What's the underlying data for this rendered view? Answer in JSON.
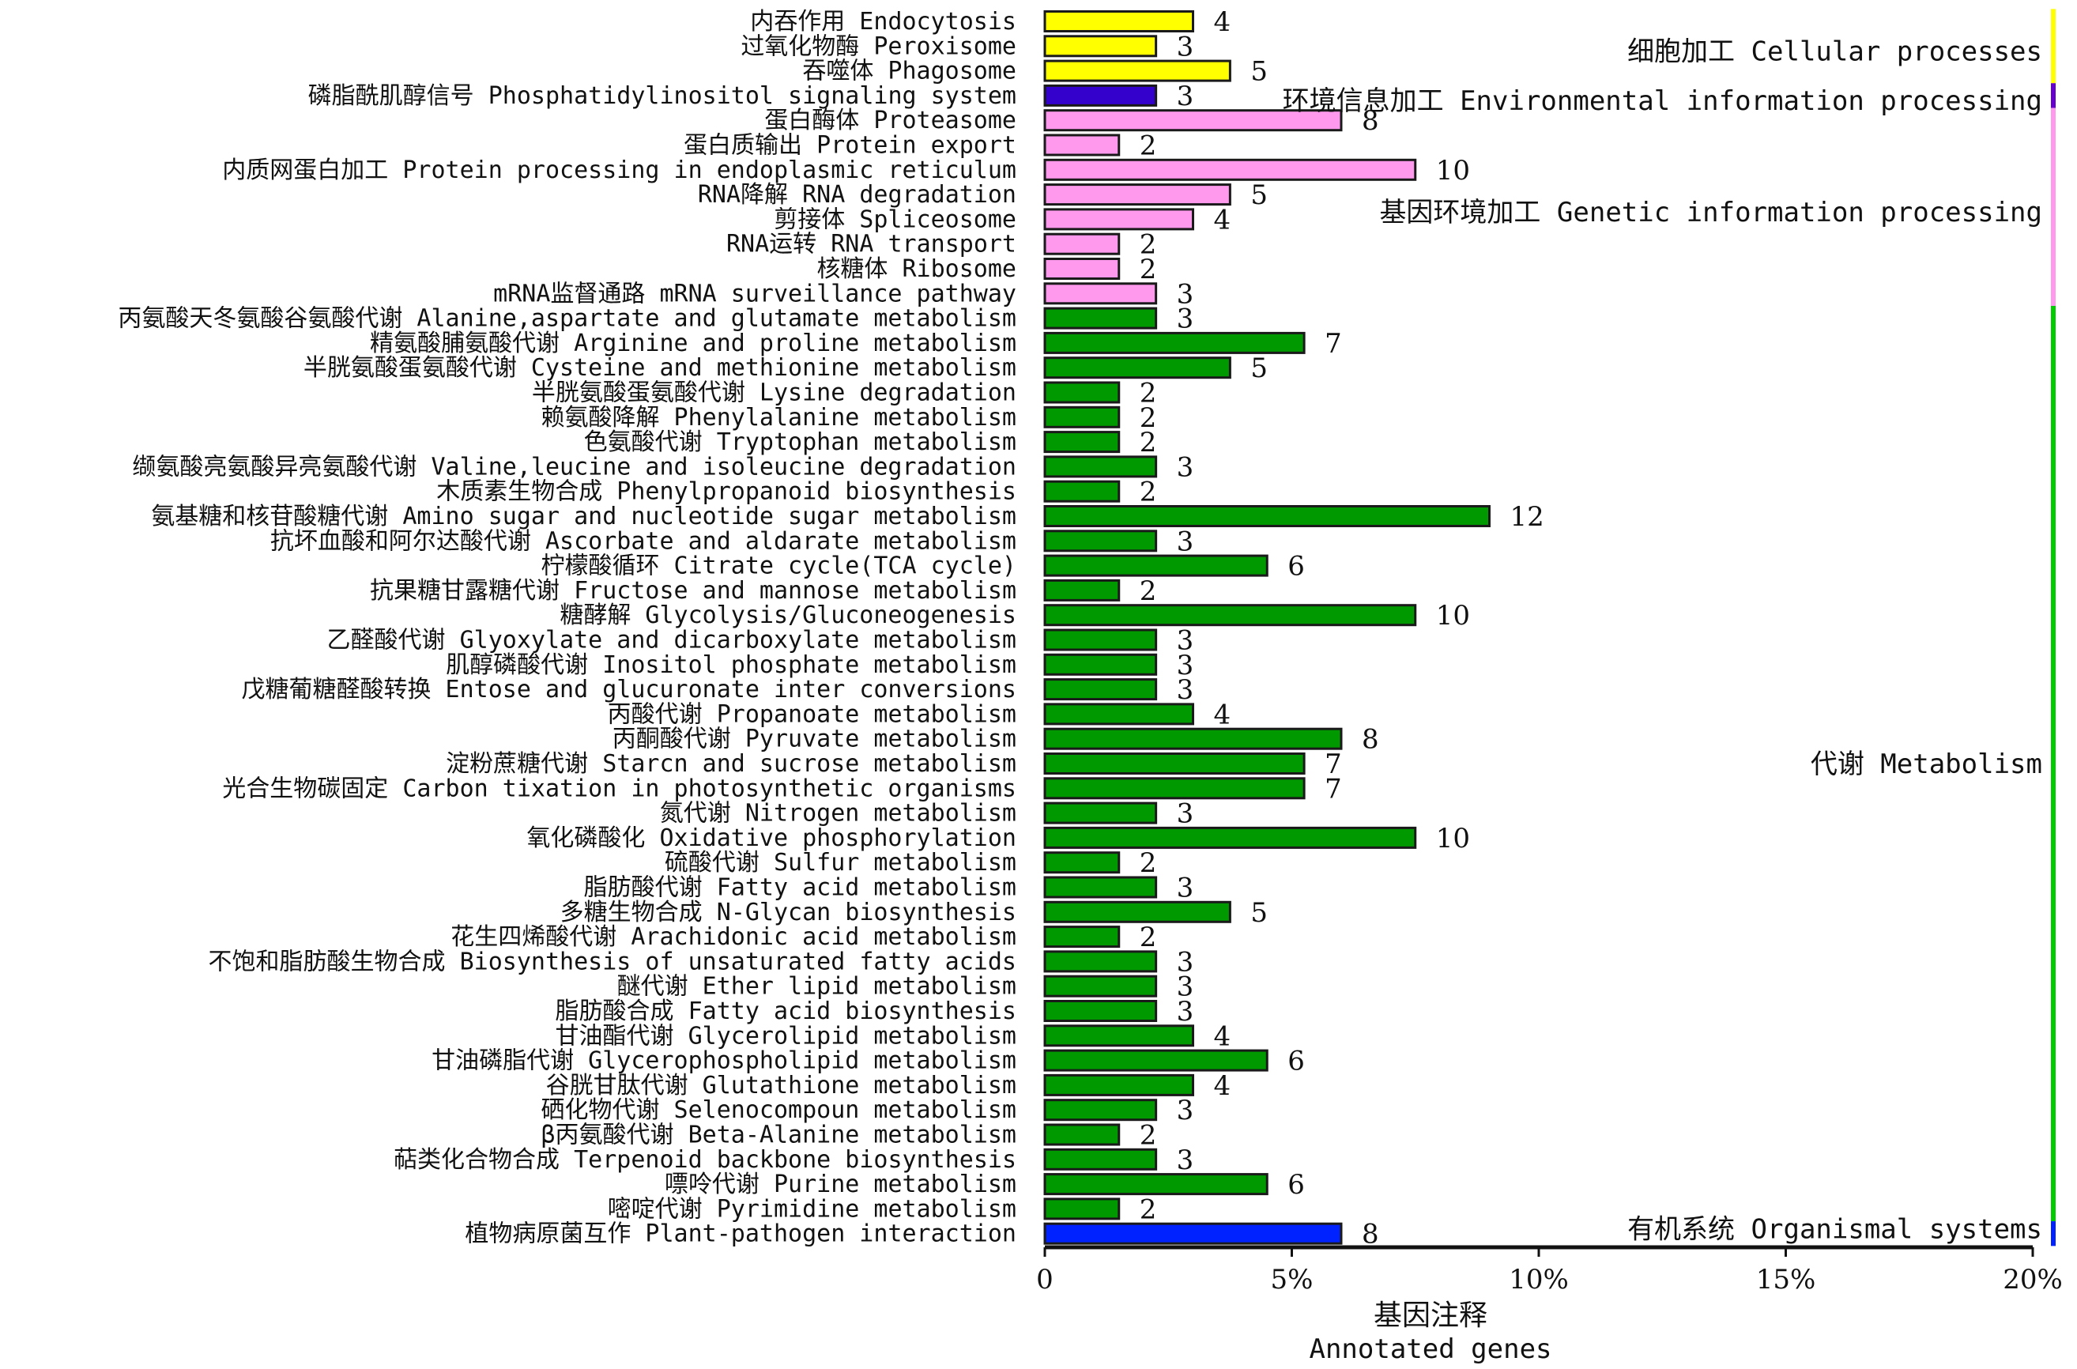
{
  "chart_data": {
    "type": "bar",
    "orientation": "horizontal",
    "xlabel": "基因注释",
    "xlabel_en": "Annotated genes",
    "x_ticks": [
      "0",
      "5%",
      "10%",
      "15%",
      "20%"
    ],
    "xlim": [
      0,
      20
    ],
    "grid": false,
    "categories": [
      {
        "label": "内吞作用 Endocytosis",
        "count": 4,
        "group": "cellular"
      },
      {
        "label": "过氧化物酶 Peroxisome",
        "count": 3,
        "group": "cellular"
      },
      {
        "label": "吞噬体 Phagosome",
        "count": 5,
        "group": "cellular"
      },
      {
        "label": "磷脂酰肌醇信号 Phosphatidylinositol signaling system",
        "count": 3,
        "group": "environmental"
      },
      {
        "label": "蛋白酶体 Proteasome",
        "count": 8,
        "group": "genetic"
      },
      {
        "label": "蛋白质输出 Protein export",
        "count": 2,
        "group": "genetic"
      },
      {
        "label": "内质网蛋白加工 Protein processing in endoplasmic reticulum",
        "count": 10,
        "group": "genetic"
      },
      {
        "label": "RNA降解 RNA degradation",
        "count": 5,
        "group": "genetic"
      },
      {
        "label": "剪接体 Spliceosome",
        "count": 4,
        "group": "genetic"
      },
      {
        "label": "RNA运转 RNA transport",
        "count": 2,
        "group": "genetic"
      },
      {
        "label": "核糖体 Ribosome",
        "count": 2,
        "group": "genetic"
      },
      {
        "label": "mRNA监督通路 mRNA surveillance pathway",
        "count": 3,
        "group": "genetic"
      },
      {
        "label": "丙氨酸天冬氨酸谷氨酸代谢 Alanine,aspartate and glutamate metabolism",
        "count": 3,
        "group": "metabolism"
      },
      {
        "label": "精氨酸脯氨酸代谢 Arginine and proline metabolism",
        "count": 7,
        "group": "metabolism"
      },
      {
        "label": "半胱氨酸蛋氨酸代谢 Cysteine and methionine metabolism",
        "count": 5,
        "group": "metabolism"
      },
      {
        "label": "半胱氨酸蛋氨酸代谢 Lysine degradation",
        "count": 2,
        "group": "metabolism"
      },
      {
        "label": "赖氨酸降解 Phenylalanine metabolism",
        "count": 2,
        "group": "metabolism"
      },
      {
        "label": "色氨酸代谢 Tryptophan metabolism",
        "count": 2,
        "group": "metabolism"
      },
      {
        "label": "缬氨酸亮氨酸异亮氨酸代谢 Valine,leucine and isoleucine degradation",
        "count": 3,
        "group": "metabolism"
      },
      {
        "label": "木质素生物合成 Phenylpropanoid biosynthesis",
        "count": 2,
        "group": "metabolism"
      },
      {
        "label": "氨基糖和核苷酸糖代谢 Amino sugar and nucleotide sugar metabolism",
        "count": 12,
        "group": "metabolism"
      },
      {
        "label": "抗坏血酸和阿尔达酸代谢 Ascorbate and aldarate metabolism",
        "count": 3,
        "group": "metabolism"
      },
      {
        "label": "柠檬酸循环 Citrate cycle(TCA cycle)",
        "count": 6,
        "group": "metabolism"
      },
      {
        "label": "抗果糖甘露糖代谢 Fructose and mannose metabolism",
        "count": 2,
        "group": "metabolism"
      },
      {
        "label": "糖酵解 Glycolysis/Gluconeogenesis",
        "count": 10,
        "group": "metabolism"
      },
      {
        "label": "乙醛酸代谢 Glyoxylate and dicarboxylate metabolism",
        "count": 3,
        "group": "metabolism"
      },
      {
        "label": "肌醇磷酸代谢 Inositol phosphate metabolism",
        "count": 3,
        "group": "metabolism"
      },
      {
        "label": "戊糖葡糖醛酸转换 Entose and glucuronate inter conversions",
        "count": 3,
        "group": "metabolism"
      },
      {
        "label": "丙酸代谢 Propanoate metabolism",
        "count": 4,
        "group": "metabolism"
      },
      {
        "label": "丙酮酸代谢 Pyruvate metabolism",
        "count": 8,
        "group": "metabolism"
      },
      {
        "label": "淀粉蔗糖代谢 Starcn and sucrose metabolism",
        "count": 7,
        "group": "metabolism"
      },
      {
        "label": "光合生物碳固定 Carbon tixation in photosynthetic organisms",
        "count": 7,
        "group": "metabolism"
      },
      {
        "label": "氮代谢 Nitrogen metabolism",
        "count": 3,
        "group": "metabolism"
      },
      {
        "label": "氧化磷酸化 Oxidative phosphorylation",
        "count": 10,
        "group": "metabolism"
      },
      {
        "label": "硫酸代谢 Sulfur metabolism",
        "count": 2,
        "group": "metabolism"
      },
      {
        "label": "脂肪酸代谢 Fatty acid metabolism",
        "count": 3,
        "group": "metabolism"
      },
      {
        "label": "多糖生物合成 N-Glycan biosynthesis",
        "count": 5,
        "group": "metabolism"
      },
      {
        "label": "花生四烯酸代谢 Arachidonic acid metabolism",
        "count": 2,
        "group": "metabolism"
      },
      {
        "label": "不饱和脂肪酸生物合成 Biosynthesis of unsaturated fatty acids",
        "count": 3,
        "group": "metabolism"
      },
      {
        "label": "醚代谢 Ether lipid metabolism",
        "count": 3,
        "group": "metabolism"
      },
      {
        "label": "脂肪酸合成 Fatty acid biosynthesis",
        "count": 3,
        "group": "metabolism"
      },
      {
        "label": "甘油酯代谢 Glycerolipid metabolism",
        "count": 4,
        "group": "metabolism"
      },
      {
        "label": "甘油磷脂代谢 Glycerophospholipid metabolism",
        "count": 6,
        "group": "metabolism"
      },
      {
        "label": "谷胱甘肽代谢 Glutathione metabolism",
        "count": 4,
        "group": "metabolism"
      },
      {
        "label": "硒化物代谢 Selenocompoun metabolism",
        "count": 3,
        "group": "metabolism"
      },
      {
        "label": "β丙氨酸代谢 Beta-Alanine metabolism",
        "count": 2,
        "group": "metabolism"
      },
      {
        "label": "萜类化合物合成 Terpenoid backbone biosynthesis",
        "count": 3,
        "group": "metabolism"
      },
      {
        "label": "嘌呤代谢 Purine metabolism",
        "count": 6,
        "group": "metabolism"
      },
      {
        "label": "嘧啶代谢 Pyrimidine metabolism",
        "count": 2,
        "group": "metabolism"
      },
      {
        "label": "植物病原菌互作 Plant-pathogen interaction",
        "count": 8,
        "group": "organismal"
      }
    ],
    "percent_per_gene": 0.75,
    "groups": [
      {
        "key": "cellular",
        "label": "细胞加工 Cellular processes",
        "color": "#ffff00",
        "side_color": "#ffff00"
      },
      {
        "key": "environmental",
        "label": "环境信息加工 Environmental information processing",
        "color": "#3300cc",
        "side_color": "#6600cc"
      },
      {
        "key": "genetic",
        "label": "基因环境加工 Genetic information processing",
        "color": "#ff99ee",
        "side_color": "#ff99ee"
      },
      {
        "key": "metabolism",
        "label": "代谢 Metabolism",
        "color": "#009900",
        "side_color": "#00cc00"
      },
      {
        "key": "organismal",
        "label": "有机系统 Organismal systems",
        "color": "#0022ff",
        "side_color": "#0022ff"
      }
    ]
  }
}
